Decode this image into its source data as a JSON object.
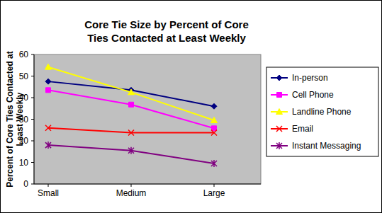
{
  "chart_data": {
    "type": "line",
    "title": "Core Tie Size by Percent of Core Ties Contacted at Least Weekly",
    "y_label": "Percent of Core Ties Contacted at Least Weekly",
    "categories": [
      "Small",
      "Medium",
      "Large"
    ],
    "series": [
      {
        "name": "In-person",
        "color": "#000080",
        "marker": "diamond",
        "values": [
          47.5,
          43.5,
          36
        ]
      },
      {
        "name": "Cell Phone",
        "color": "#ff00ff",
        "marker": "square",
        "values": [
          43.5,
          36.8,
          25.8
        ]
      },
      {
        "name": "Landline Phone",
        "color": "#ffff00",
        "marker": "triangle",
        "values": [
          54.2,
          42.5,
          29.5
        ]
      },
      {
        "name": "Email",
        "color": "#ff0000",
        "marker": "x",
        "values": [
          26,
          23.8,
          23.8
        ]
      },
      {
        "name": "Instant Messaging",
        "color": "#800080",
        "marker": "star",
        "values": [
          18,
          15.5,
          9.5
        ]
      }
    ],
    "ylim": [
      0,
      60
    ],
    "yticks": [
      0,
      10,
      20,
      30,
      40,
      50,
      60
    ],
    "grid": false,
    "legend": "right"
  }
}
